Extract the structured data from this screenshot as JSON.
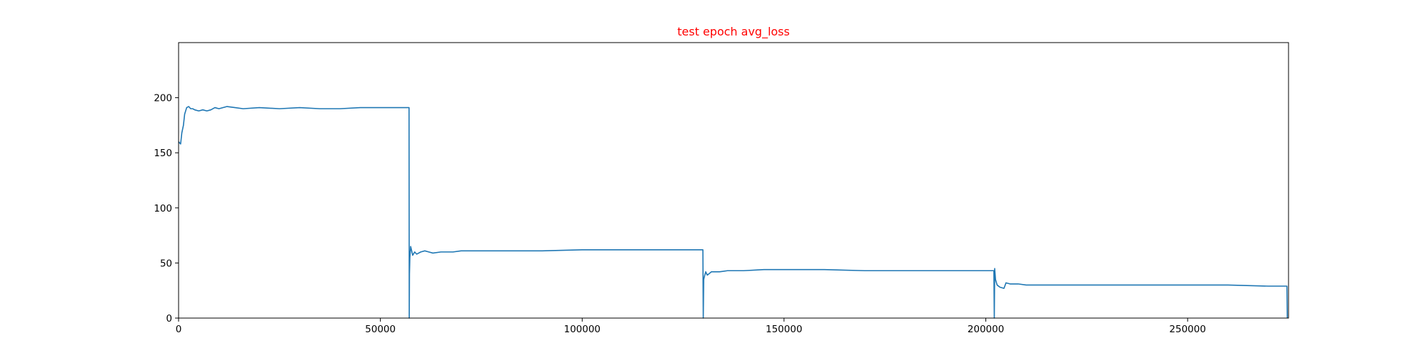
{
  "chart_data": {
    "type": "line",
    "title": "test epoch avg_loss",
    "title_color": "#ff0000",
    "line_color": "#1f77b4",
    "xlabel": "",
    "ylabel": "",
    "xlim": [
      0,
      275000
    ],
    "ylim": [
      0,
      250
    ],
    "xticks": [
      0,
      50000,
      100000,
      150000,
      200000,
      250000
    ],
    "xtick_labels": [
      "0",
      "50000",
      "100000",
      "150000",
      "200000",
      "250000"
    ],
    "yticks": [
      0,
      50,
      100,
      150,
      200
    ],
    "ytick_labels": [
      "0",
      "50",
      "100",
      "150",
      "200"
    ],
    "grid": false,
    "series": [
      {
        "x": [
          0,
          500,
          800,
          1200,
          1500,
          2000,
          2500,
          3000,
          3500,
          4000,
          5000,
          6000,
          7000,
          8000,
          9000,
          10000,
          12000,
          14000,
          16000,
          20000,
          25000,
          30000,
          35000,
          40000,
          45000,
          50000,
          55000,
          57000,
          57100,
          57150,
          57200,
          57300,
          57500,
          58000,
          58500,
          59000,
          60000,
          61000,
          62000,
          63000,
          65000,
          68000,
          70000,
          75000,
          80000,
          90000,
          100000,
          110000,
          120000,
          125000,
          129900,
          130000,
          130100,
          130300,
          130600,
          131000,
          132000,
          134000,
          136000,
          140000,
          145000,
          150000,
          160000,
          170000,
          180000,
          190000,
          200000,
          202000,
          202100,
          202200,
          202400,
          202800,
          203500,
          204500,
          205000,
          206000,
          208000,
          210000,
          215000,
          220000,
          225000,
          230000,
          240000,
          250000,
          260000,
          270000,
          274500,
          274600,
          274700
        ],
        "y": [
          160,
          158,
          168,
          175,
          185,
          191,
          192,
          190,
          190,
          189,
          188,
          189,
          188,
          189,
          191,
          190,
          192,
          191,
          190,
          191,
          190,
          191,
          190,
          190,
          191,
          191,
          191,
          191,
          191,
          0,
          40,
          55,
          65,
          57,
          60,
          58,
          60,
          61,
          60,
          59,
          60,
          60,
          61,
          61,
          61,
          61,
          62,
          62,
          62,
          62,
          62,
          0,
          35,
          38,
          42,
          39,
          42,
          42,
          43,
          43,
          44,
          44,
          44,
          43,
          43,
          43,
          43,
          43,
          0,
          45,
          35,
          30,
          28,
          27,
          32,
          31,
          31,
          30,
          30,
          30,
          30,
          30,
          30,
          30,
          30,
          29,
          29,
          29,
          0
        ]
      }
    ]
  }
}
